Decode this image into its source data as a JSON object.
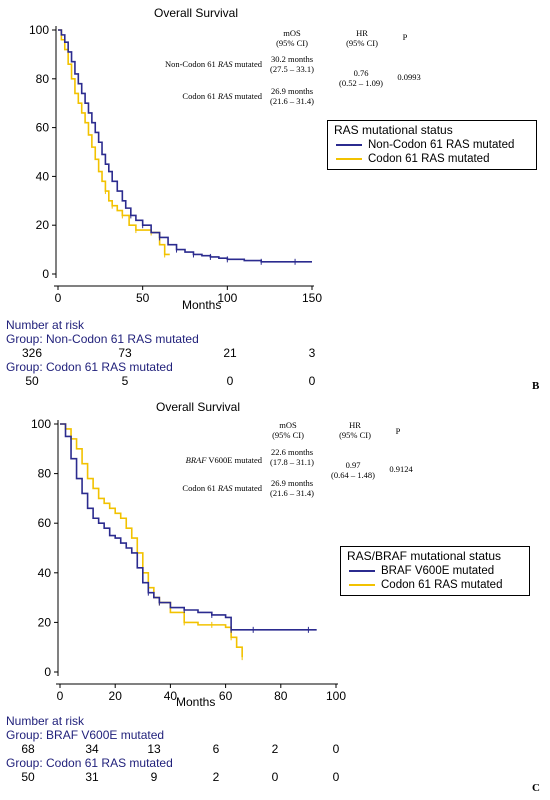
{
  "panels": [
    {
      "title": "Overall Survival",
      "stats_header": {
        "mos": "mOS",
        "mos_ci": "(95% CI)",
        "hr": "HR",
        "hr_ci": "(95% CI)",
        "p": "P"
      },
      "rows": [
        {
          "label_prefix": "Non-Codon 61 ",
          "label_italic": "RAS",
          "label_suffix": " mutated",
          "mos": "30.2 months",
          "mos_ci": "(27.5 – 33.1)"
        },
        {
          "label_prefix": "Codon 61 ",
          "label_italic": "RAS",
          "label_suffix": " mutated",
          "mos": "26.9 months",
          "mos_ci": "(21.6 – 31.4)"
        }
      ],
      "hr": "0.76",
      "hr_ci": "(0.52 – 1.09)",
      "p": "0.0993",
      "legend_title": "RAS mutational status",
      "legend": [
        {
          "name": "Non-Codon 61 RAS mutated",
          "color": "#2b2b8f"
        },
        {
          "name": "Codon 61 RAS mutated",
          "color": "#f2c200"
        }
      ],
      "xlabel": "Months",
      "risk_title": "Number at risk",
      "risk_groups": [
        {
          "label": "Group: Non-Codon 61 RAS mutated",
          "values": [
            "326",
            "73",
            "21",
            "3"
          ]
        },
        {
          "label": "Group: Codon 61 RAS mutated",
          "values": [
            "50",
            "5",
            "0",
            "0"
          ]
        }
      ],
      "letter": "B"
    },
    {
      "title": "Overall Survival",
      "stats_header": {
        "mos": "mOS",
        "mos_ci": "(95% CI)",
        "hr": "HR",
        "hr_ci": "(95% CI)",
        "p": "P"
      },
      "rows": [
        {
          "label_prefix": "",
          "label_italic": "BRAF",
          "label_suffix": " V600E mutated",
          "mos": "22.6 months",
          "mos_ci": "(17.8 – 31.1)"
        },
        {
          "label_prefix": "Codon 61 ",
          "label_italic": "RAS",
          "label_suffix": " mutated",
          "mos": "26.9 months",
          "mos_ci": "(21.6 – 31.4)"
        }
      ],
      "hr": "0.97",
      "hr_ci": "(0.64 – 1.48)",
      "p": "0.9124",
      "legend_title": "RAS/BRAF mutational status",
      "legend": [
        {
          "name": "BRAF V600E mutated",
          "color": "#2b2b8f"
        },
        {
          "name": "Codon 61 RAS mutated",
          "color": "#f2c200"
        }
      ],
      "xlabel": "Months",
      "risk_title": "Number at risk",
      "risk_groups": [
        {
          "label": "Group: BRAF V600E mutated",
          "values": [
            "68",
            "34",
            "13",
            "6",
            "2",
            "0"
          ]
        },
        {
          "label": "Group: Codon 61 RAS mutated",
          "values": [
            "50",
            "31",
            "9",
            "2",
            "0",
            "0"
          ]
        }
      ],
      "letter": "C"
    }
  ],
  "chart_data": [
    {
      "type": "line",
      "title": "Overall Survival",
      "xlabel": "Months",
      "ylabel": "",
      "xlim": [
        0,
        150
      ],
      "ylim": [
        0,
        100
      ],
      "xticks": [
        0,
        50,
        100,
        150
      ],
      "yticks": [
        0,
        20,
        40,
        60,
        80,
        100
      ],
      "series": [
        {
          "name": "Non-Codon 61 RAS mutated",
          "color": "#2b2b8f",
          "x": [
            0,
            2,
            4,
            6,
            8,
            10,
            12,
            14,
            16,
            18,
            20,
            22,
            24,
            26,
            28,
            30,
            32,
            35,
            38,
            40,
            43,
            46,
            50,
            55,
            60,
            65,
            70,
            75,
            80,
            85,
            90,
            95,
            100,
            110,
            120,
            130,
            140,
            150
          ],
          "y": [
            100,
            98,
            95,
            91,
            87,
            82,
            78,
            74,
            70,
            66,
            62,
            58,
            54,
            49,
            45,
            42,
            38,
            34,
            30,
            27,
            24,
            22,
            20,
            17,
            15,
            12,
            10,
            9,
            8,
            7.5,
            7,
            6.5,
            6,
            5.5,
            5,
            5,
            5,
            5
          ]
        },
        {
          "name": "Codon 61 RAS mutated",
          "color": "#f2c200",
          "x": [
            0,
            2,
            4,
            6,
            8,
            10,
            12,
            14,
            16,
            18,
            20,
            22,
            24,
            26,
            28,
            30,
            32,
            35,
            38,
            42,
            46,
            50,
            55,
            60,
            63,
            66
          ],
          "y": [
            100,
            96,
            92,
            86,
            80,
            74,
            70,
            66,
            62,
            57,
            52,
            47,
            42,
            38,
            34,
            30,
            28,
            26,
            24,
            20,
            18,
            18,
            17,
            12,
            8,
            8
          ]
        }
      ]
    },
    {
      "type": "line",
      "title": "Overall Survival",
      "xlabel": "Months",
      "ylabel": "",
      "xlim": [
        0,
        100
      ],
      "ylim": [
        0,
        100
      ],
      "xticks": [
        0,
        20,
        40,
        60,
        80,
        100
      ],
      "yticks": [
        0,
        20,
        40,
        60,
        80,
        100
      ],
      "series": [
        {
          "name": "BRAF V600E mutated",
          "color": "#2b2b8f",
          "x": [
            0,
            2,
            4,
            6,
            8,
            10,
            12,
            14,
            16,
            18,
            20,
            22,
            24,
            26,
            28,
            30,
            32,
            34,
            36,
            40,
            45,
            50,
            55,
            60,
            62,
            65,
            70,
            80,
            90,
            93
          ],
          "y": [
            100,
            95,
            86,
            78,
            72,
            66,
            62,
            60,
            58,
            55,
            54,
            52,
            50,
            48,
            42,
            36,
            32,
            30,
            28,
            26,
            25,
            24,
            23,
            22,
            17,
            17,
            17,
            17,
            17,
            17
          ]
        },
        {
          "name": "Codon 61 RAS mutated",
          "color": "#f2c200",
          "x": [
            0,
            2,
            4,
            6,
            8,
            10,
            12,
            14,
            16,
            18,
            20,
            22,
            24,
            26,
            28,
            30,
            32,
            34,
            36,
            40,
            45,
            50,
            55,
            60,
            62,
            64,
            66
          ],
          "y": [
            100,
            98,
            94,
            90,
            84,
            78,
            74,
            70,
            68,
            66,
            64,
            62,
            58,
            54,
            48,
            40,
            34,
            30,
            28,
            24,
            20,
            19,
            19,
            18,
            14,
            10,
            6
          ]
        }
      ]
    }
  ]
}
